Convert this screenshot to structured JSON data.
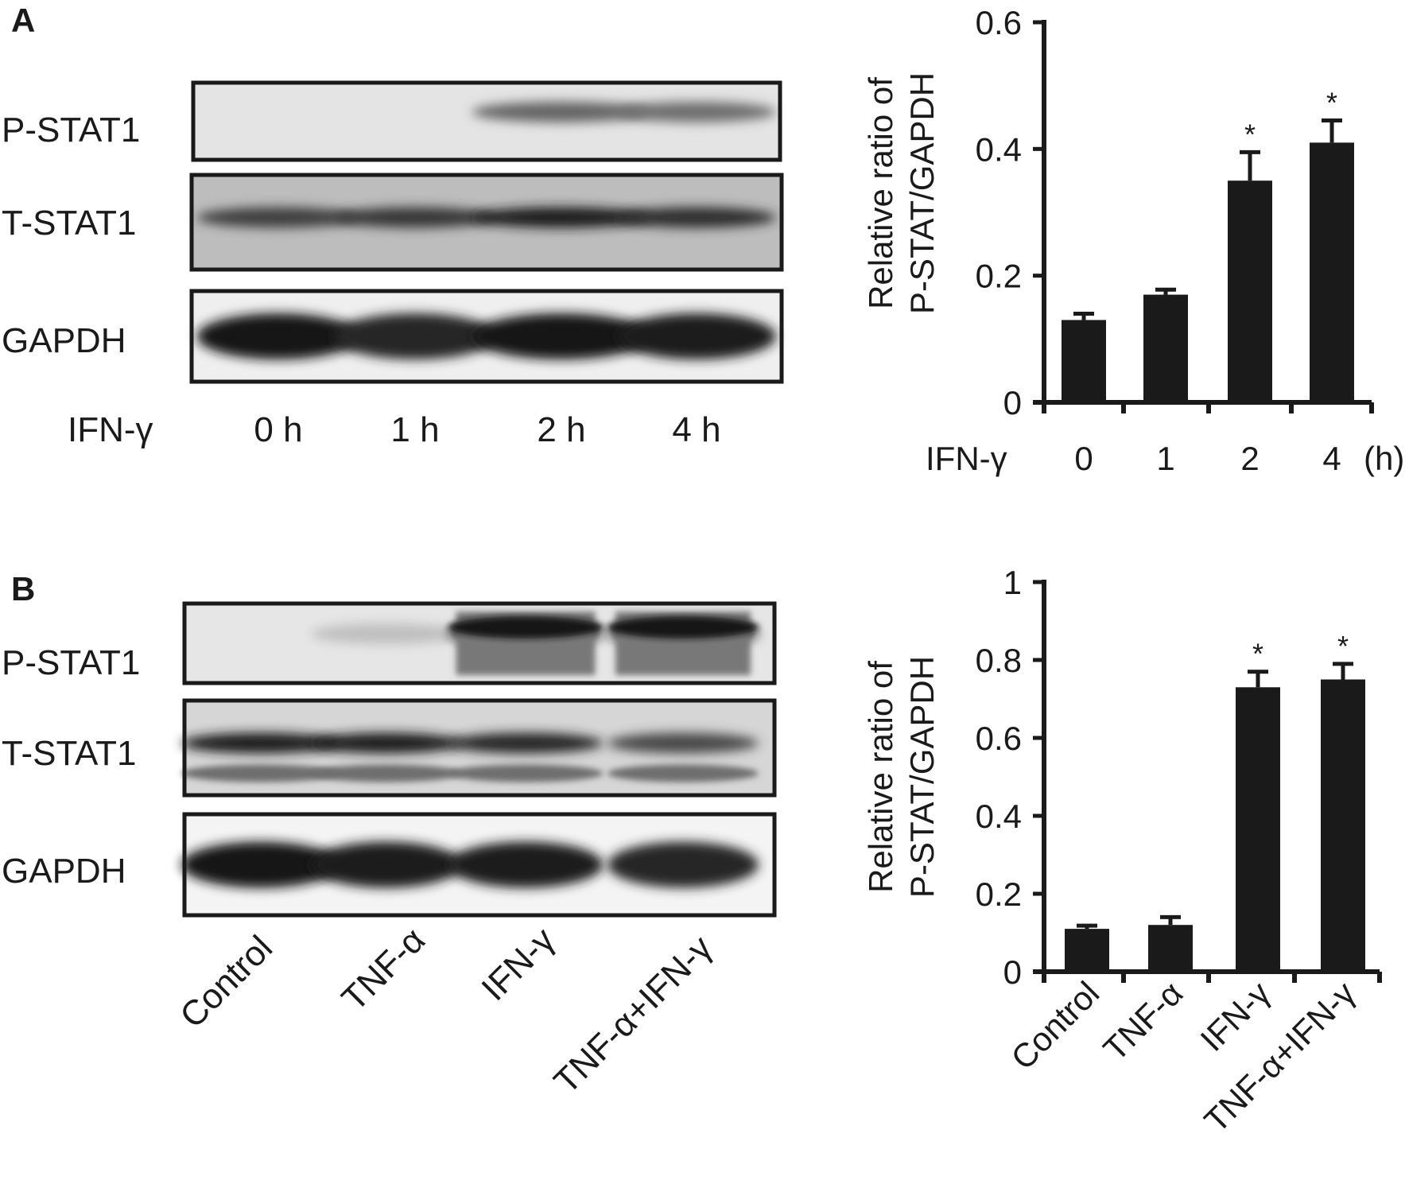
{
  "panels": [
    {
      "letter": "A",
      "blot": {
        "rows": [
          "P-STAT1",
          "T-STAT1",
          "GAPDH"
        ],
        "treatment_label": "IFN-γ",
        "lanes": [
          "0 h",
          "1 h",
          "2 h",
          "4 h"
        ],
        "band_intensity": {
          "P-STAT1": [
            0.02,
            0.02,
            0.55,
            0.5
          ],
          "T-STAT1": [
            0.75,
            0.8,
            0.95,
            0.85
          ],
          "GAPDH": [
            1.0,
            0.9,
            1.0,
            0.95
          ]
        }
      }
    },
    {
      "letter": "B",
      "blot": {
        "rows": [
          "P-STAT1",
          "T-STAT1",
          "GAPDH"
        ],
        "lanes": [
          "Control",
          "TNF-α",
          "IFN-γ",
          "TNF-α+IFN-γ"
        ],
        "band_intensity": {
          "P-STAT1": [
            0.03,
            0.05,
            0.95,
            0.95
          ],
          "T-STAT1": [
            0.95,
            0.95,
            0.9,
            0.7
          ],
          "GAPDH": [
            1.0,
            0.95,
            0.95,
            0.9
          ]
        }
      }
    }
  ],
  "chart_data": [
    {
      "type": "bar",
      "panel": "A",
      "ylabel": [
        "Relative ratio of",
        "P-STAT/GAPDH"
      ],
      "xlabel": "IFN-γ",
      "x_unit": "(h)",
      "categories": [
        "0",
        "1",
        "2",
        "4"
      ],
      "values": [
        0.13,
        0.17,
        0.35,
        0.41
      ],
      "errors": [
        0.01,
        0.008,
        0.045,
        0.035
      ],
      "significance": [
        "",
        "",
        "*",
        "*"
      ],
      "ylim": [
        0,
        0.6
      ],
      "yticks": [
        "0",
        "0.2",
        "0.4",
        "0.6"
      ],
      "bar_color": "#1a1a1a",
      "grid": false
    },
    {
      "type": "bar",
      "panel": "B",
      "ylabel": [
        "Relative ratio of",
        "P-STAT/GAPDH"
      ],
      "categories": [
        "Control",
        "TNF-α",
        "IFN-γ",
        "TNF-α+IFN-γ"
      ],
      "values": [
        0.11,
        0.12,
        0.73,
        0.75
      ],
      "errors": [
        0.008,
        0.02,
        0.04,
        0.04
      ],
      "significance": [
        "",
        "",
        "*",
        "*"
      ],
      "ylim": [
        0,
        1
      ],
      "yticks": [
        "0",
        "0.2",
        "0.4",
        "0.6",
        "0.8",
        "1"
      ],
      "bar_color": "#1a1a1a",
      "grid": false
    }
  ]
}
